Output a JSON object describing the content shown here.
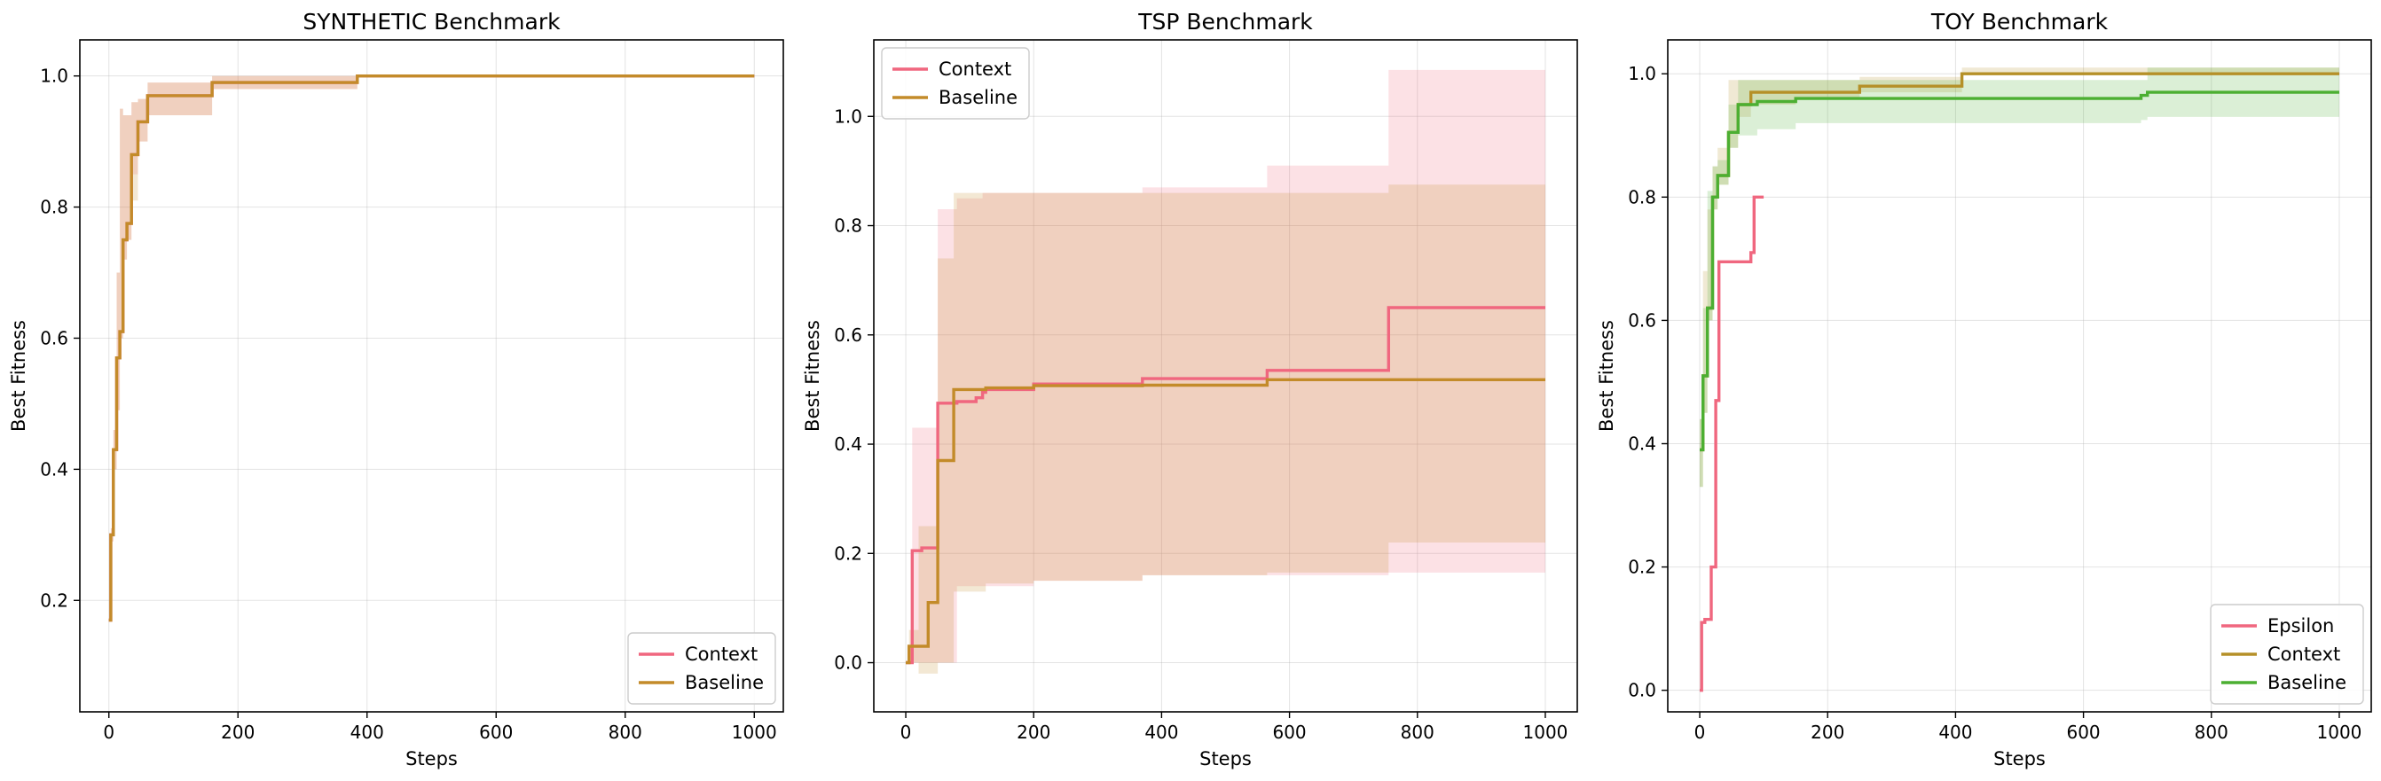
{
  "colors": {
    "context_pink": "#f0677f",
    "baseline_gold": "#c38b2a",
    "context_olive": "#b59028",
    "baseline_green": "#4caf32"
  },
  "chart_data": [
    {
      "type": "line",
      "title": "SYNTHETIC Benchmark",
      "xlabel": "Steps",
      "ylabel": "Best Fitness",
      "xlim": [
        -45,
        1045
      ],
      "ylim": [
        0.03,
        1.055
      ],
      "xticks": [
        0,
        200,
        400,
        600,
        800,
        1000
      ],
      "yticks": [
        0.2,
        0.4,
        0.6,
        0.8,
        1.0
      ],
      "grid": true,
      "legend_position": "lower-right",
      "series": [
        {
          "name": "Context",
          "color": "#f0677f",
          "step": true,
          "x": [
            0,
            3,
            7,
            12,
            17,
            22,
            28,
            35,
            45,
            60,
            160,
            385,
            1000
          ],
          "y": [
            0.17,
            0.3,
            0.43,
            0.57,
            0.61,
            0.75,
            0.775,
            0.88,
            0.93,
            0.97,
            0.99,
            1.0,
            1.0
          ],
          "band_low": [
            0.17,
            0.29,
            0.4,
            0.49,
            0.6,
            0.72,
            0.75,
            0.85,
            0.9,
            0.94,
            0.98,
            1.0,
            1.0
          ],
          "band_high": [
            0.17,
            0.31,
            0.46,
            0.7,
            0.95,
            0.94,
            0.94,
            0.96,
            0.965,
            0.99,
            1.0,
            1.0,
            1.0
          ]
        },
        {
          "name": "Baseline",
          "color": "#c38b2a",
          "step": true,
          "x": [
            0,
            3,
            7,
            12,
            17,
            22,
            28,
            35,
            45,
            60,
            160,
            385,
            1000
          ],
          "y": [
            0.17,
            0.3,
            0.43,
            0.57,
            0.61,
            0.75,
            0.775,
            0.88,
            0.93,
            0.97,
            0.99,
            1.0,
            1.0
          ],
          "band_low": [
            0.17,
            0.29,
            0.4,
            0.49,
            0.6,
            0.72,
            0.75,
            0.81,
            0.9,
            0.94,
            0.98,
            1.0,
            1.0
          ],
          "band_high": [
            0.17,
            0.31,
            0.46,
            0.7,
            0.95,
            0.94,
            0.94,
            0.96,
            0.965,
            0.99,
            1.0,
            1.0,
            1.0
          ]
        }
      ]
    },
    {
      "type": "line",
      "title": "TSP Benchmark",
      "xlabel": "Steps",
      "ylabel": "Best Fitness",
      "xlim": [
        -50,
        1050
      ],
      "ylim": [
        -0.09,
        1.14
      ],
      "xticks": [
        0,
        200,
        400,
        600,
        800,
        1000
      ],
      "yticks": [
        0.0,
        0.2,
        0.4,
        0.6,
        0.8,
        1.0
      ],
      "grid": true,
      "legend_position": "upper-left",
      "series": [
        {
          "name": "Context",
          "color": "#f0677f",
          "step": true,
          "x": [
            0,
            10,
            25,
            50,
            80,
            110,
            120,
            125,
            200,
            370,
            565,
            755,
            1000
          ],
          "y": [
            0.0,
            0.205,
            0.21,
            0.475,
            0.478,
            0.485,
            0.495,
            0.5,
            0.51,
            0.52,
            0.535,
            0.65,
            0.65
          ],
          "band_low": [
            0.0,
            0.0,
            0.0,
            0.0,
            0.14,
            0.14,
            0.14,
            0.14,
            0.15,
            0.16,
            0.16,
            0.165,
            0.165
          ],
          "band_high": [
            0.0,
            0.43,
            0.43,
            0.83,
            0.85,
            0.85,
            0.86,
            0.86,
            0.86,
            0.87,
            0.91,
            1.085,
            1.085
          ]
        },
        {
          "name": "Baseline",
          "color": "#c38b2a",
          "step": true,
          "x": [
            0,
            5,
            20,
            35,
            50,
            75,
            125,
            200,
            370,
            565,
            755,
            1000
          ],
          "y": [
            0.0,
            0.03,
            0.03,
            0.11,
            0.37,
            0.5,
            0.503,
            0.507,
            0.508,
            0.518,
            0.518,
            0.518
          ],
          "band_low": [
            0.0,
            0.0,
            -0.02,
            -0.02,
            0.0,
            0.13,
            0.145,
            0.15,
            0.16,
            0.165,
            0.22,
            0.22
          ],
          "band_high": [
            0.0,
            0.06,
            0.25,
            0.25,
            0.74,
            0.86,
            0.86,
            0.86,
            0.86,
            0.86,
            0.875,
            0.875
          ]
        }
      ]
    },
    {
      "type": "line",
      "title": "TOY Benchmark",
      "xlabel": "Steps",
      "ylabel": "Best Fitness",
      "xlim": [
        -50,
        1050
      ],
      "ylim": [
        -0.035,
        1.055
      ],
      "xticks": [
        0,
        200,
        400,
        600,
        800,
        1000
      ],
      "yticks": [
        0.0,
        0.2,
        0.4,
        0.6,
        0.8,
        1.0
      ],
      "grid": true,
      "legend_position": "lower-right",
      "series": [
        {
          "name": "Epsilon",
          "color": "#f0677f",
          "step": true,
          "x": [
            0,
            3,
            8,
            18,
            25,
            30,
            80,
            85,
            100
          ],
          "y": [
            0.0,
            0.11,
            0.115,
            0.2,
            0.47,
            0.695,
            0.71,
            0.8,
            0.8
          ],
          "band_low": [
            0.0,
            0.11,
            0.115,
            0.2,
            0.47,
            0.695,
            0.71,
            0.8,
            0.8
          ],
          "band_high": [
            0.0,
            0.11,
            0.115,
            0.2,
            0.47,
            0.695,
            0.71,
            0.8,
            0.8
          ]
        },
        {
          "name": "Context",
          "color": "#b59028",
          "step": true,
          "x": [
            0,
            5,
            12,
            20,
            28,
            45,
            60,
            80,
            150,
            250,
            410,
            1000
          ],
          "y": [
            0.39,
            0.51,
            0.62,
            0.8,
            0.835,
            0.905,
            0.95,
            0.97,
            0.97,
            0.98,
            1.0,
            1.0
          ],
          "band_low": [
            0.33,
            0.45,
            0.6,
            0.78,
            0.82,
            0.88,
            0.93,
            0.95,
            0.96,
            0.97,
            1.0,
            1.0
          ],
          "band_high": [
            0.44,
            0.68,
            0.78,
            0.85,
            0.88,
            0.99,
            0.99,
            0.99,
            0.99,
            0.995,
            1.01,
            1.01
          ]
        },
        {
          "name": "Baseline",
          "color": "#4caf32",
          "step": true,
          "x": [
            0,
            5,
            12,
            20,
            28,
            45,
            60,
            90,
            150,
            690,
            700,
            1000
          ],
          "y": [
            0.39,
            0.51,
            0.62,
            0.8,
            0.835,
            0.905,
            0.95,
            0.955,
            0.96,
            0.965,
            0.97,
            0.97
          ],
          "band_low": [
            0.33,
            0.45,
            0.6,
            0.78,
            0.82,
            0.88,
            0.9,
            0.91,
            0.92,
            0.925,
            0.93,
            0.93
          ],
          "band_high": [
            0.44,
            0.62,
            0.81,
            0.85,
            0.86,
            0.95,
            0.99,
            0.99,
            0.99,
            0.99,
            1.01,
            1.01
          ]
        }
      ]
    }
  ]
}
